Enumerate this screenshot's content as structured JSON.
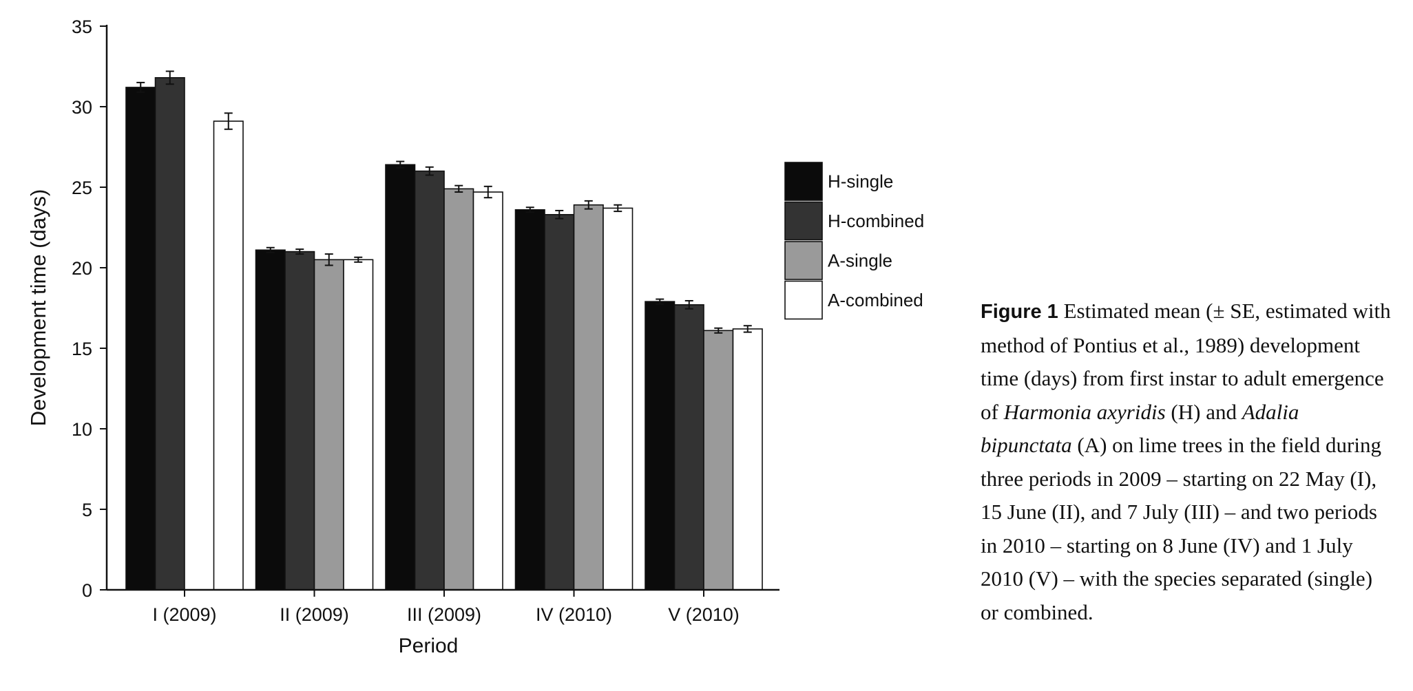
{
  "chart_data": {
    "type": "bar",
    "xlabel": "Period",
    "ylabel": "Development time (days)",
    "ylim": [
      0,
      35
    ],
    "yticks": [
      0,
      5,
      10,
      15,
      20,
      25,
      30,
      35
    ],
    "categories": [
      "I (2009)",
      "II (2009)",
      "III (2009)",
      "IV (2010)",
      "V (2010)"
    ],
    "series": [
      {
        "name": "H-single",
        "color": "#0b0b0b",
        "values": [
          31.2,
          21.1,
          26.4,
          23.6,
          17.9
        ],
        "se": [
          0.3,
          0.15,
          0.2,
          0.15,
          0.15
        ]
      },
      {
        "name": "H-combined",
        "color": "#333333",
        "values": [
          31.8,
          21.0,
          26.0,
          23.3,
          17.7
        ],
        "se": [
          0.4,
          0.15,
          0.25,
          0.25,
          0.25
        ]
      },
      {
        "name": "A-single",
        "color": "#9a9a9a",
        "values": [
          null,
          20.5,
          24.9,
          23.9,
          16.1
        ],
        "se": [
          null,
          0.35,
          0.2,
          0.25,
          0.15
        ]
      },
      {
        "name": "A-combined",
        "color": "#ffffff",
        "values": [
          29.1,
          20.5,
          24.7,
          23.7,
          16.2
        ],
        "se": [
          0.5,
          0.15,
          0.35,
          0.2,
          0.2
        ]
      }
    ],
    "legend_position": "right",
    "grid": false,
    "error_bars": true
  },
  "caption": {
    "figure_label": "Figure 1",
    "text_1": " Estimated mean (± SE, estimated with method of Pontius et al., 1989) development time (days) from first instar to adult emergence of ",
    "species_h": "Harmonia axyridis",
    "text_2": " (H) and ",
    "species_a": "Adalia bipunctata",
    "text_3": " (A) on lime trees in the field during three periods in 2009 – starting on 22 May (I), 15 June (II), and 7 July (III) – and two periods in 2010 – starting on 8 June (IV) and 1 July 2010 (V) – with the species separated (single) or combined."
  }
}
